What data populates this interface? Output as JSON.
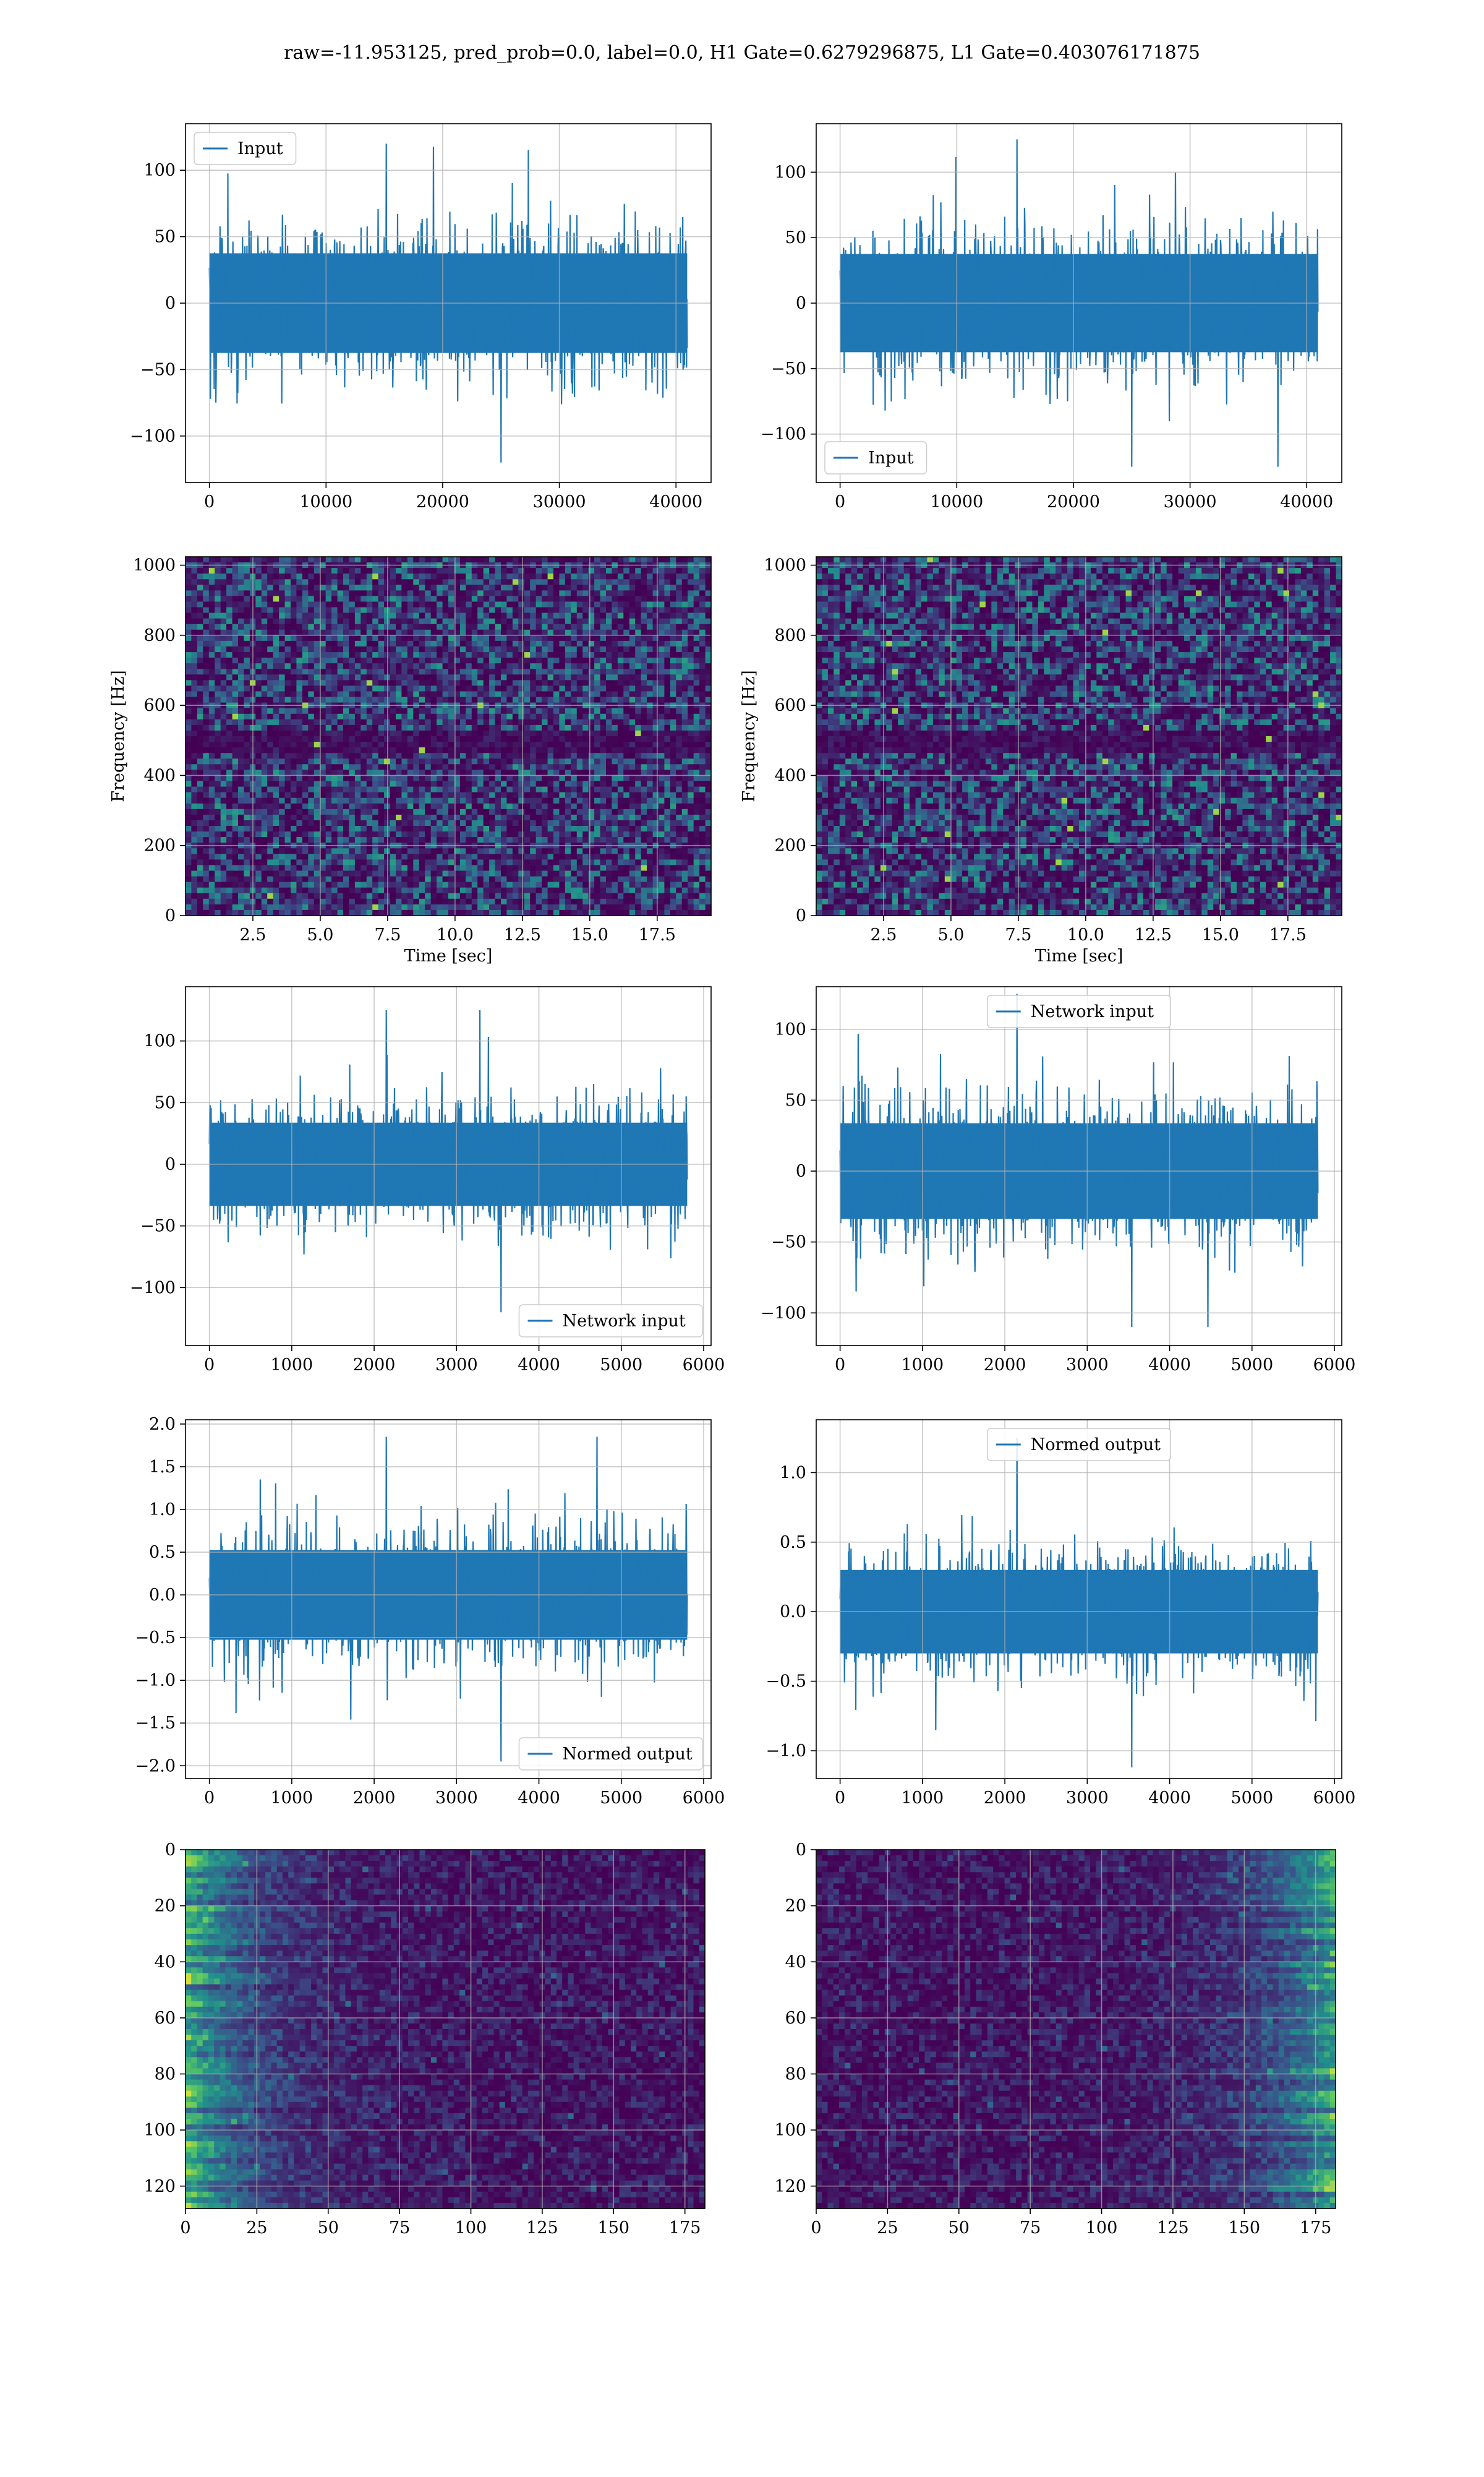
{
  "title": "raw=-11.953125, pred_prob=0.0, label=0.0, H1 Gate=0.6279296875, L1 Gate=0.403076171875",
  "colors": {
    "line": "#1f77b4",
    "grid": "#b0b0b0",
    "axis": "#000000"
  },
  "chart_data": [
    {
      "type": "line",
      "panel": "row1-left",
      "series": [
        {
          "name": "Input",
          "n_samples": 40960,
          "typical_amplitude": 50,
          "max": 120,
          "min": -120
        }
      ],
      "xlim": [
        -2048,
        43008
      ],
      "ylim": [
        -135,
        135
      ],
      "xticks": [
        0,
        10000,
        20000,
        30000,
        40000
      ],
      "yticks": [
        -100,
        -50,
        0,
        50,
        100
      ],
      "legend": "upper left",
      "grid": true
    },
    {
      "type": "line",
      "panel": "row1-right",
      "series": [
        {
          "name": "Input",
          "n_samples": 40960,
          "typical_amplitude": 50,
          "max": 125,
          "min": -125
        }
      ],
      "xlim": [
        -2048,
        43008
      ],
      "ylim": [
        -137,
        137
      ],
      "xticks": [
        0,
        10000,
        20000,
        30000,
        40000
      ],
      "yticks": [
        -100,
        -50,
        0,
        50,
        100
      ],
      "legend": "lower left",
      "grid": true
    },
    {
      "type": "heatmap",
      "panel": "row2-left",
      "xlabel": "Time [sec]",
      "ylabel": "Frequency [Hz]",
      "xlim": [
        0,
        19.5
      ],
      "ylim": [
        0,
        1024
      ],
      "xticks": [
        2.5,
        5.0,
        7.5,
        10.0,
        12.5,
        15.0,
        17.5
      ],
      "yticks": [
        0,
        200,
        400,
        600,
        800,
        1000
      ],
      "colormap": "viridis",
      "dark_band_hz": 500,
      "grid": true
    },
    {
      "type": "heatmap",
      "panel": "row2-right",
      "xlabel": "Time [sec]",
      "ylabel": "Frequency [Hz]",
      "xlim": [
        0,
        19.5
      ],
      "ylim": [
        0,
        1024
      ],
      "xticks": [
        2.5,
        5.0,
        7.5,
        10.0,
        12.5,
        15.0,
        17.5
      ],
      "yticks": [
        0,
        200,
        400,
        600,
        800,
        1000
      ],
      "colormap": "viridis",
      "dark_band_hz": 500,
      "grid": true
    },
    {
      "type": "line",
      "panel": "row3-left",
      "series": [
        {
          "name": "Network input",
          "n_samples": 5800,
          "typical_amplitude": 45,
          "max": 125,
          "min": -120
        }
      ],
      "xlim": [
        -290,
        6090
      ],
      "ylim": [
        -147,
        144
      ],
      "xticks": [
        0,
        1000,
        2000,
        3000,
        4000,
        5000,
        6000
      ],
      "yticks": [
        -100,
        -50,
        0,
        50,
        100
      ],
      "legend": "lower right",
      "grid": true
    },
    {
      "type": "line",
      "panel": "row3-right",
      "series": [
        {
          "name": "Network input",
          "n_samples": 5800,
          "typical_amplitude": 45,
          "max": 125,
          "min": -110
        }
      ],
      "xlim": [
        -290,
        6090
      ],
      "ylim": [
        -123,
        130
      ],
      "xticks": [
        0,
        1000,
        2000,
        3000,
        4000,
        5000,
        6000
      ],
      "yticks": [
        -100,
        -50,
        0,
        50,
        100
      ],
      "legend": "upper center",
      "grid": true
    },
    {
      "type": "line",
      "panel": "row4-left",
      "series": [
        {
          "name": "Normed output",
          "n_samples": 5800,
          "typical_amplitude": 0.7,
          "max": 1.85,
          "min": -1.95
        }
      ],
      "xlim": [
        -290,
        6090
      ],
      "ylim": [
        -2.15,
        2.05
      ],
      "xticks": [
        0,
        1000,
        2000,
        3000,
        4000,
        5000,
        6000
      ],
      "yticks": [
        -2.0,
        -1.5,
        -1.0,
        -0.5,
        0.0,
        0.5,
        1.0,
        1.5,
        2.0
      ],
      "legend": "lower right",
      "grid": true
    },
    {
      "type": "line",
      "panel": "row4-right",
      "series": [
        {
          "name": "Normed output",
          "n_samples": 5800,
          "typical_amplitude": 0.4,
          "max": 1.25,
          "min": -1.12
        }
      ],
      "xlim": [
        -290,
        6090
      ],
      "ylim": [
        -1.2,
        1.38
      ],
      "xticks": [
        0,
        1000,
        2000,
        3000,
        4000,
        5000,
        6000
      ],
      "yticks": [
        -1.0,
        -0.5,
        0.0,
        0.5,
        1.0
      ],
      "legend": "upper center",
      "grid": true
    },
    {
      "type": "heatmap",
      "panel": "row5-left",
      "rows": 128,
      "cols": 182,
      "xlim": [
        0,
        182
      ],
      "ylim": [
        128,
        0
      ],
      "xticks": [
        0,
        25,
        50,
        75,
        100,
        125,
        150,
        175
      ],
      "yticks": [
        0,
        20,
        40,
        60,
        80,
        100,
        120
      ],
      "colormap": "viridis",
      "bright_side": "left",
      "grid": true
    },
    {
      "type": "heatmap",
      "panel": "row5-right",
      "rows": 128,
      "cols": 182,
      "xlim": [
        0,
        182
      ],
      "ylim": [
        128,
        0
      ],
      "xticks": [
        0,
        25,
        50,
        75,
        100,
        125,
        150,
        175
      ],
      "yticks": [
        0,
        20,
        40,
        60,
        80,
        100,
        120
      ],
      "colormap": "viridis",
      "bright_side": "right",
      "grid": true
    }
  ]
}
